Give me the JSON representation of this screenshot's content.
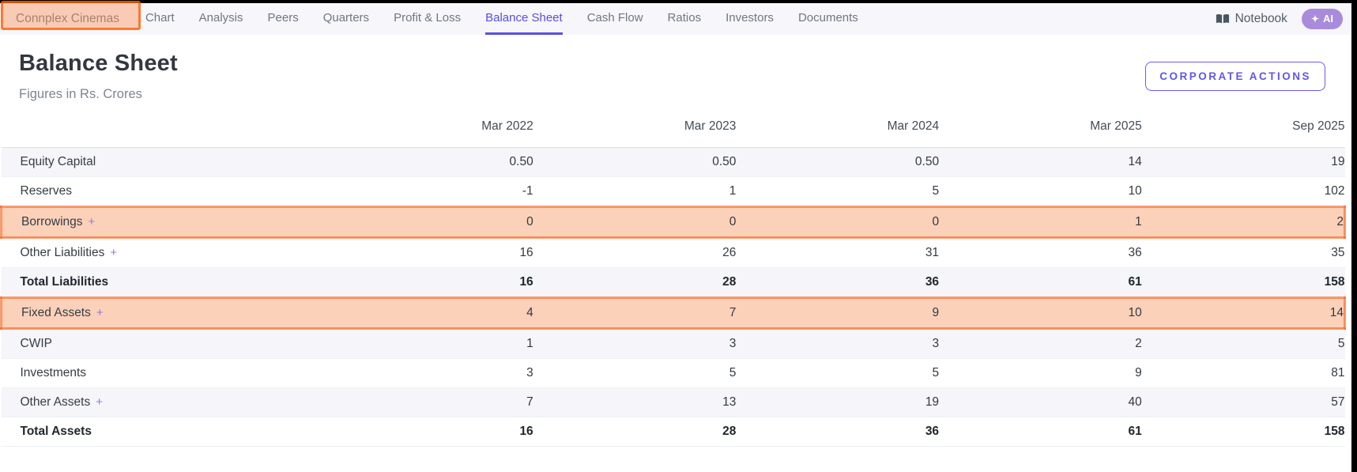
{
  "nav": {
    "company": "Connplex Cinemas",
    "tabs": [
      {
        "label": "Chart",
        "active": false
      },
      {
        "label": "Analysis",
        "active": false
      },
      {
        "label": "Peers",
        "active": false
      },
      {
        "label": "Quarters",
        "active": false
      },
      {
        "label": "Profit & Loss",
        "active": false
      },
      {
        "label": "Balance Sheet",
        "active": true
      },
      {
        "label": "Cash Flow",
        "active": false
      },
      {
        "label": "Ratios",
        "active": false
      },
      {
        "label": "Investors",
        "active": false
      },
      {
        "label": "Documents",
        "active": false
      }
    ],
    "notebook_label": "Notebook",
    "ai_label": "AI",
    "ai_icon": "✦"
  },
  "header": {
    "title": "Balance Sheet",
    "subtitle": "Figures in Rs. Crores",
    "corporate_actions_label": "CORPORATE ACTIONS"
  },
  "table": {
    "columns": [
      "Mar 2022",
      "Mar 2023",
      "Mar 2024",
      "Mar 2025",
      "Sep 2025"
    ],
    "rows": [
      {
        "label": "Equity Capital",
        "expandable": false,
        "bold": false,
        "highlighted": false,
        "values": [
          "0.50",
          "0.50",
          "0.50",
          "14",
          "19"
        ]
      },
      {
        "label": "Reserves",
        "expandable": false,
        "bold": false,
        "highlighted": false,
        "values": [
          "-1",
          "1",
          "5",
          "10",
          "102"
        ]
      },
      {
        "label": "Borrowings",
        "expandable": true,
        "bold": false,
        "highlighted": true,
        "values": [
          "0",
          "0",
          "0",
          "1",
          "2"
        ]
      },
      {
        "label": "Other Liabilities",
        "expandable": true,
        "bold": false,
        "highlighted": false,
        "values": [
          "16",
          "26",
          "31",
          "36",
          "35"
        ]
      },
      {
        "label": "Total Liabilities",
        "expandable": false,
        "bold": true,
        "highlighted": false,
        "values": [
          "16",
          "28",
          "36",
          "61",
          "158"
        ]
      },
      {
        "label": "Fixed Assets",
        "expandable": true,
        "bold": false,
        "highlighted": true,
        "values": [
          "4",
          "7",
          "9",
          "10",
          "14"
        ]
      },
      {
        "label": "CWIP",
        "expandable": false,
        "bold": false,
        "highlighted": false,
        "values": [
          "1",
          "3",
          "3",
          "2",
          "5"
        ]
      },
      {
        "label": "Investments",
        "expandable": false,
        "bold": false,
        "highlighted": false,
        "values": [
          "3",
          "5",
          "5",
          "9",
          "81"
        ]
      },
      {
        "label": "Other Assets",
        "expandable": true,
        "bold": false,
        "highlighted": false,
        "values": [
          "7",
          "13",
          "19",
          "40",
          "57"
        ]
      },
      {
        "label": "Total Assets",
        "expandable": false,
        "bold": true,
        "highlighted": false,
        "values": [
          "16",
          "28",
          "36",
          "61",
          "158"
        ]
      }
    ]
  },
  "colors": {
    "accent_purple": "#5b50e4",
    "annotation_orange": "#ff5e00",
    "annotation_fill": "rgba(255,123,50,0.35)",
    "ai_pill": "#a98bdb",
    "row_stripe": "#f5f5fa",
    "nav_bg": "#f7f6fb"
  }
}
